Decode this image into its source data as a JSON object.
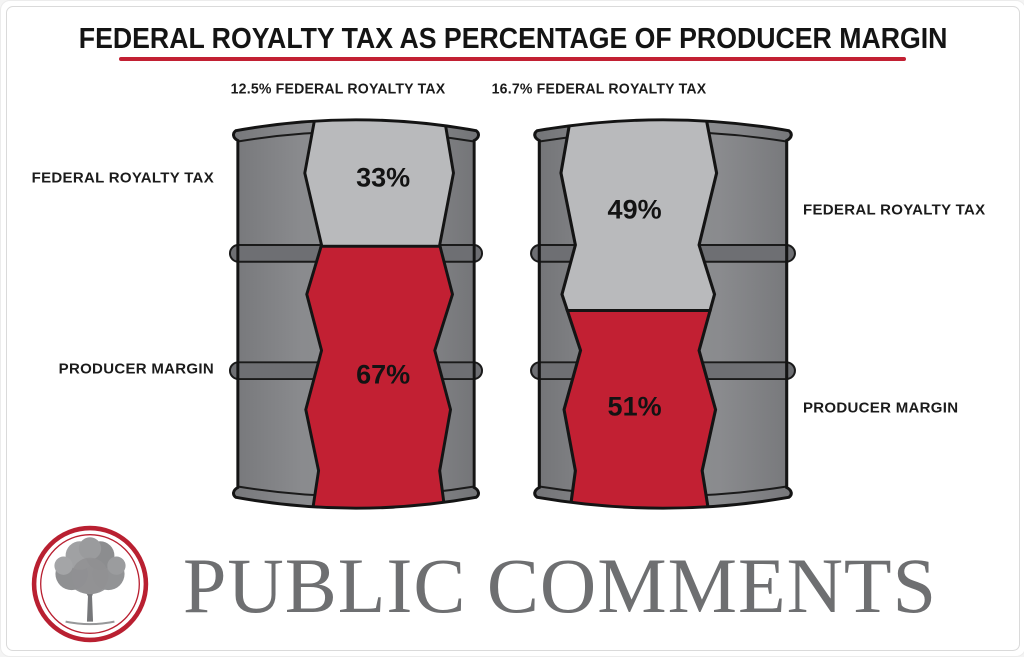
{
  "title": {
    "text": "FEDERAL ROYALTY TAX AS PERCENTAGE OF PRODUCER MARGIN",
    "underline_color": "#c22033"
  },
  "chart_data": {
    "type": "bar",
    "subtype": "stacked-pictogram-oil-barrels",
    "title": "FEDERAL ROYALTY TAX AS PERCENTAGE OF PRODUCER MARGIN",
    "unit": "%",
    "categories": [
      "12.5% FEDERAL ROYALTY TAX",
      "16.7% FEDERAL ROYALTY TAX"
    ],
    "series": [
      {
        "name": "FEDERAL ROYALTY TAX",
        "values": [
          33,
          49
        ],
        "color": "#b9babc"
      },
      {
        "name": "PRODUCER MARGIN",
        "values": [
          67,
          51
        ],
        "color": "#c22033"
      }
    ],
    "legend_position": "beside-barrels",
    "barrels": [
      {
        "header": "12.5% FEDERAL ROYALTY TAX",
        "royalty_rate_display": "12.5%",
        "label_side": "left",
        "segments": [
          {
            "label": "FEDERAL ROYALTY TAX",
            "value": 33,
            "display": "33%",
            "color": "#b9babc"
          },
          {
            "label": "PRODUCER MARGIN",
            "value": 67,
            "display": "67%",
            "color": "#c22033"
          }
        ]
      },
      {
        "header": "16.7% FEDERAL ROYALTY TAX",
        "royalty_rate_display": "16.7%",
        "label_side": "right",
        "segments": [
          {
            "label": "FEDERAL ROYALTY TAX",
            "value": 49,
            "display": "49%",
            "color": "#b9babc"
          },
          {
            "label": "PRODUCER MARGIN",
            "value": 51,
            "display": "51%",
            "color": "#c22033"
          }
        ]
      }
    ]
  },
  "footer": {
    "brand": "PUBLIC COMMENTS",
    "logo": "tree-in-red-circle"
  },
  "colors": {
    "accent_red": "#c22033",
    "band_gray": "#b9babc",
    "barrel_gray": "#85868a",
    "outline": "#141414",
    "brand_gray": "#6e6f71",
    "logo_ring_red": "#b92031"
  }
}
